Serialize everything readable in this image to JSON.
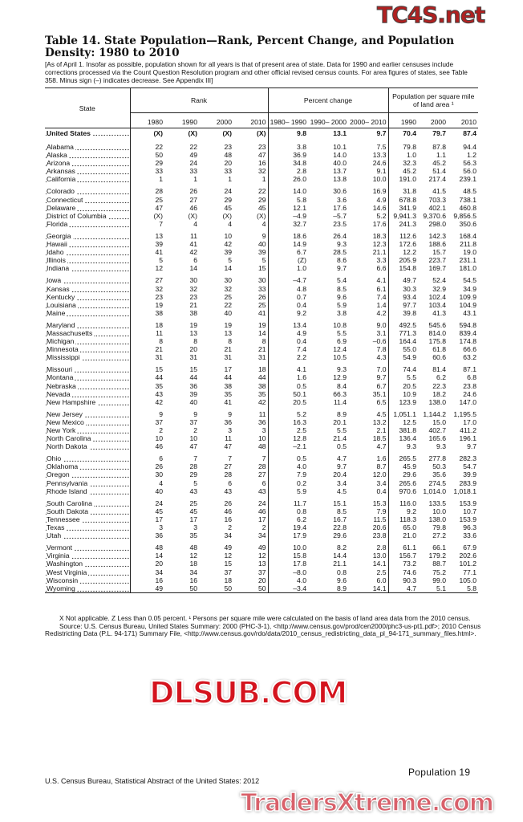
{
  "title": "Table 14. State Population—Rank, Percent Change, and Population Density: 1980 to 2010",
  "headnote": "[As of April 1. Insofar as possible, population shown for all years is that of present area of state. Data for 1990 and earlier censuses include corrections processed via the Count Question Resolution program and other official revised census counts. For area figures of states, see Table 358. Minus sign (–) indicates decrease. See Appendix III]",
  "headers": {
    "state": "State",
    "rank": "Rank",
    "pct": "Percent change",
    "density": "Population per square mile of land area ¹",
    "rank_years": [
      "1980",
      "1990",
      "2000",
      "2010"
    ],
    "pct_years": [
      "1980– 1990",
      "1990– 2000",
      "2000– 2010"
    ],
    "density_years": [
      "1990",
      "2000",
      "2010"
    ]
  },
  "us_row": [
    "United States",
    "(X)",
    "(X)",
    "(X)",
    "(X)",
    "9.8",
    "13.1",
    "9.7",
    "70.4",
    "79.7",
    "87.4"
  ],
  "rows": [
    [
      "Alabama",
      "22",
      "22",
      "23",
      "23",
      "3.8",
      "10.1",
      "7.5",
      "79.8",
      "87.8",
      "94.4"
    ],
    [
      "Alaska",
      "50",
      "49",
      "48",
      "47",
      "36.9",
      "14.0",
      "13.3",
      "1.0",
      "1.1",
      "1.2"
    ],
    [
      "Arizona",
      "29",
      "24",
      "20",
      "16",
      "34.8",
      "40.0",
      "24.6",
      "32.3",
      "45.2",
      "56.3"
    ],
    [
      "Arkansas",
      "33",
      "33",
      "33",
      "32",
      "2.8",
      "13.7",
      "9.1",
      "45.2",
      "51.4",
      "56.0"
    ],
    [
      "California",
      "1",
      "1",
      "1",
      "1",
      "26.0",
      "13.8",
      "10.0",
      "191.0",
      "217.4",
      "239.1"
    ],
    [
      "Colorado",
      "28",
      "26",
      "24",
      "22",
      "14.0",
      "30.6",
      "16.9",
      "31.8",
      "41.5",
      "48.5"
    ],
    [
      "Connecticut",
      "25",
      "27",
      "29",
      "29",
      "5.8",
      "3.6",
      "4.9",
      "678.8",
      "703.3",
      "738.1"
    ],
    [
      "Delaware",
      "47",
      "46",
      "45",
      "45",
      "12.1",
      "17.6",
      "14.6",
      "341.9",
      "402.1",
      "460.8"
    ],
    [
      "District of Columbia",
      "(X)",
      "(X)",
      "(X)",
      "(X)",
      "–4.9",
      "–5.7",
      "5.2",
      "9,941.3",
      "9,370.6",
      "9,856.5"
    ],
    [
      "Florida",
      "7",
      "4",
      "4",
      "4",
      "32.7",
      "23.5",
      "17.6",
      "241.3",
      "298.0",
      "350.6"
    ],
    [
      "Georgia",
      "13",
      "11",
      "10",
      "9",
      "18.6",
      "26.4",
      "18.3",
      "112.6",
      "142.3",
      "168.4"
    ],
    [
      "Hawaii",
      "39",
      "41",
      "42",
      "40",
      "14.9",
      "9.3",
      "12.3",
      "172.6",
      "188.6",
      "211.8"
    ],
    [
      "Idaho",
      "41",
      "42",
      "39",
      "39",
      "6.7",
      "28.5",
      "21.1",
      "12.2",
      "15.7",
      "19.0"
    ],
    [
      "Illinois",
      "5",
      "6",
      "5",
      "5",
      "(Z)",
      "8.6",
      "3.3",
      "205.9",
      "223.7",
      "231.1"
    ],
    [
      "Indiana",
      "12",
      "14",
      "14",
      "15",
      "1.0",
      "9.7",
      "6.6",
      "154.8",
      "169.7",
      "181.0"
    ],
    [
      "Iowa",
      "27",
      "30",
      "30",
      "30",
      "–4.7",
      "5.4",
      "4.1",
      "49.7",
      "52.4",
      "54.5"
    ],
    [
      "Kansas",
      "32",
      "32",
      "32",
      "33",
      "4.8",
      "8.5",
      "6.1",
      "30.3",
      "32.9",
      "34.9"
    ],
    [
      "Kentucky",
      "23",
      "23",
      "25",
      "26",
      "0.7",
      "9.6",
      "7.4",
      "93.4",
      "102.4",
      "109.9"
    ],
    [
      "Louisiana",
      "19",
      "21",
      "22",
      "25",
      "0.4",
      "5.9",
      "1.4",
      "97.7",
      "103.4",
      "104.9"
    ],
    [
      "Maine",
      "38",
      "38",
      "40",
      "41",
      "9.2",
      "3.8",
      "4.2",
      "39.8",
      "41.3",
      "43.1"
    ],
    [
      "Maryland",
      "18",
      "19",
      "19",
      "19",
      "13.4",
      "10.8",
      "9.0",
      "492.5",
      "545.6",
      "594.8"
    ],
    [
      "Massachusetts",
      "11",
      "13",
      "13",
      "14",
      "4.9",
      "5.5",
      "3.1",
      "771.3",
      "814.0",
      "839.4"
    ],
    [
      "Michigan",
      "8",
      "8",
      "8",
      "8",
      "0.4",
      "6.9",
      "–0.6",
      "164.4",
      "175.8",
      "174.8"
    ],
    [
      "Minnesota",
      "21",
      "20",
      "21",
      "21",
      "7.4",
      "12.4",
      "7.8",
      "55.0",
      "61.8",
      "66.6"
    ],
    [
      "Mississippi",
      "31",
      "31",
      "31",
      "31",
      "2.2",
      "10.5",
      "4.3",
      "54.9",
      "60.6",
      "63.2"
    ],
    [
      "Missouri",
      "15",
      "15",
      "17",
      "18",
      "4.1",
      "9.3",
      "7.0",
      "74.4",
      "81.4",
      "87.1"
    ],
    [
      "Montana",
      "44",
      "44",
      "44",
      "44",
      "1.6",
      "12.9",
      "9.7",
      "5.5",
      "6.2",
      "6.8"
    ],
    [
      "Nebraska",
      "35",
      "36",
      "38",
      "38",
      "0.5",
      "8.4",
      "6.7",
      "20.5",
      "22.3",
      "23.8"
    ],
    [
      "Nevada",
      "43",
      "39",
      "35",
      "35",
      "50.1",
      "66.3",
      "35.1",
      "10.9",
      "18.2",
      "24.6"
    ],
    [
      "New Hampshire",
      "42",
      "40",
      "41",
      "42",
      "20.5",
      "11.4",
      "6.5",
      "123.9",
      "138.0",
      "147.0"
    ],
    [
      "New Jersey",
      "9",
      "9",
      "9",
      "11",
      "5.2",
      "8.9",
      "4.5",
      "1,051.1",
      "1,144.2",
      "1,195.5"
    ],
    [
      "New Mexico",
      "37",
      "37",
      "36",
      "36",
      "16.3",
      "20.1",
      "13.2",
      "12.5",
      "15.0",
      "17.0"
    ],
    [
      "New York",
      "2",
      "2",
      "3",
      "3",
      "2.5",
      "5.5",
      "2.1",
      "381.8",
      "402.7",
      "411.2"
    ],
    [
      "North Carolina",
      "10",
      "10",
      "11",
      "10",
      "12.8",
      "21.4",
      "18.5",
      "136.4",
      "165.6",
      "196.1"
    ],
    [
      "North Dakota",
      "46",
      "47",
      "47",
      "48",
      "–2.1",
      "0.5",
      "4.7",
      "9.3",
      "9.3",
      "9.7"
    ],
    [
      "Ohio",
      "6",
      "7",
      "7",
      "7",
      "0.5",
      "4.7",
      "1.6",
      "265.5",
      "277.8",
      "282.3"
    ],
    [
      "Oklahoma",
      "26",
      "28",
      "27",
      "28",
      "4.0",
      "9.7",
      "8.7",
      "45.9",
      "50.3",
      "54.7"
    ],
    [
      "Oregon",
      "30",
      "29",
      "28",
      "27",
      "7.9",
      "20.4",
      "12.0",
      "29.6",
      "35.6",
      "39.9"
    ],
    [
      "Pennsylvania",
      "4",
      "5",
      "6",
      "6",
      "0.2",
      "3.4",
      "3.4",
      "265.6",
      "274.5",
      "283.9"
    ],
    [
      "Rhode Island",
      "40",
      "43",
      "43",
      "43",
      "5.9",
      "4.5",
      "0.4",
      "970.6",
      "1,014.0",
      "1,018.1"
    ],
    [
      "South Carolina",
      "24",
      "25",
      "26",
      "24",
      "11.7",
      "15.1",
      "15.3",
      "116.0",
      "133.5",
      "153.9"
    ],
    [
      "South Dakota",
      "45",
      "45",
      "46",
      "46",
      "0.8",
      "8.5",
      "7.9",
      "9.2",
      "10.0",
      "10.7"
    ],
    [
      "Tennessee",
      "17",
      "17",
      "16",
      "17",
      "6.2",
      "16.7",
      "11.5",
      "118.3",
      "138.0",
      "153.9"
    ],
    [
      "Texas",
      "3",
      "3",
      "2",
      "2",
      "19.4",
      "22.8",
      "20.6",
      "65.0",
      "79.8",
      "96.3"
    ],
    [
      "Utah",
      "36",
      "35",
      "34",
      "34",
      "17.9",
      "29.6",
      "23.8",
      "21.0",
      "27.2",
      "33.6"
    ],
    [
      "Vermont",
      "48",
      "48",
      "49",
      "49",
      "10.0",
      "8.2",
      "2.8",
      "61.1",
      "66.1",
      "67.9"
    ],
    [
      "Virginia",
      "14",
      "12",
      "12",
      "12",
      "15.8",
      "14.4",
      "13.0",
      "156.7",
      "179.2",
      "202.6"
    ],
    [
      "Washington",
      "20",
      "18",
      "15",
      "13",
      "17.8",
      "21.1",
      "14.1",
      "73.2",
      "88.7",
      "101.2"
    ],
    [
      "West Virginia",
      "34",
      "34",
      "37",
      "37",
      "–8.0",
      "0.8",
      "2.5",
      "74.6",
      "75.2",
      "77.1"
    ],
    [
      "Wisconsin",
      "16",
      "16",
      "18",
      "20",
      "4.0",
      "9.6",
      "6.0",
      "90.3",
      "99.0",
      "105.0"
    ],
    [
      "Wyoming",
      "49",
      "50",
      "50",
      "50",
      "–3.4",
      "8.9",
      "14.1",
      "4.7",
      "5.1",
      "5.8"
    ]
  ],
  "footnotes": {
    "notes": "X Not applicable. Z Less than 0.05 percent. ¹ Persons per square mile were calculated on the basis of land area data from the 2010 census.",
    "source": "Source: U.S. Census Bureau, United States Summary: 2000 (PHC-3-1), <http://www.census.gov/prod/cen2000/phc3-us-pt1.pdf>; 2010 Census Redistricting Data (P.L. 94-171) Summary File, <http://www.census.gov/rdo/data/2010_census_redistricting_data_pl_94-171_summary_files.html>."
  },
  "page_footer": {
    "section_page": "Population  19",
    "credit": "U.S. Census Bureau, Statistical Abstract of the United States: 2012"
  },
  "watermarks": [
    "TC4S.net",
    "DLSUB.COM",
    "TradersXtreme.com"
  ]
}
